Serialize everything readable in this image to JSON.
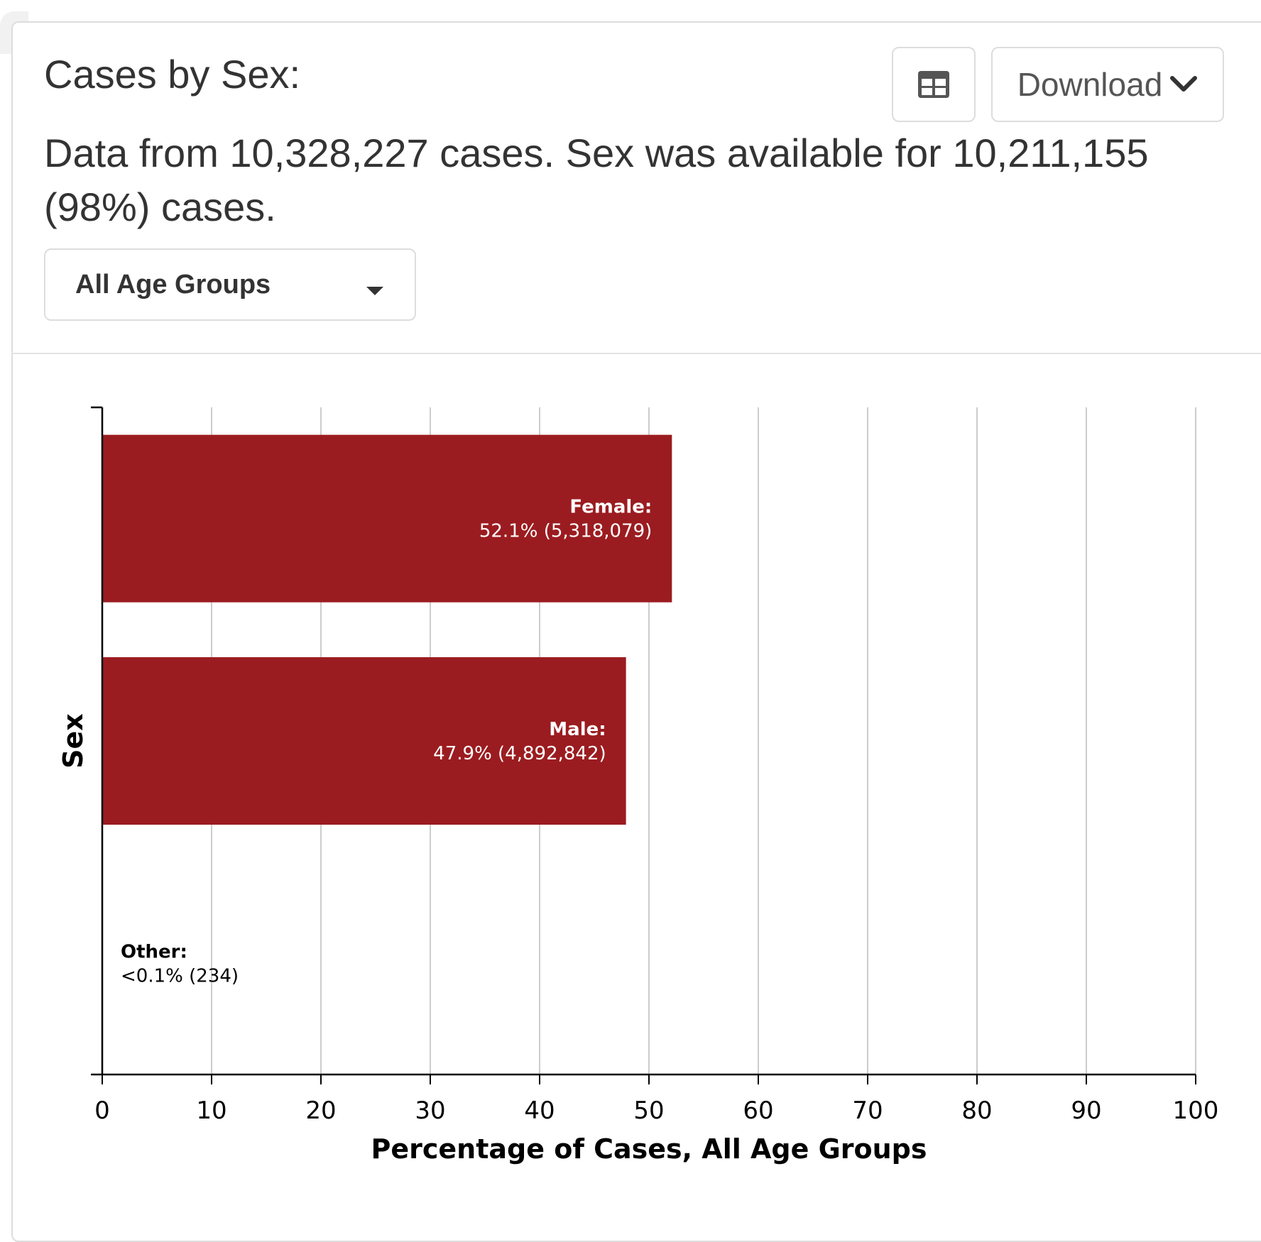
{
  "card": {
    "title": "Cases by Sex:",
    "summary": "Data from 10,328,227 cases. Sex was available for 10,211,155 (98%) cases."
  },
  "toolbar": {
    "table_icon": "table-icon",
    "download_label": "Download",
    "download_icon": "chevron-down-icon"
  },
  "filter": {
    "selected": "All Age Groups"
  },
  "colors": {
    "bar": "#9b1c20",
    "grid": "#cccccc",
    "axis": "#000000"
  },
  "chart_data": {
    "type": "bar",
    "orientation": "horizontal",
    "categories": [
      "Female",
      "Male",
      "Other"
    ],
    "values": [
      52.1,
      47.9,
      0.002
    ],
    "labels": [
      {
        "name": "Female:",
        "value": "52.1% (5,318,079)"
      },
      {
        "name": "Male:",
        "value": "47.9% (4,892,842)"
      },
      {
        "name": "Other:",
        "value": "<0.1% (234)"
      }
    ],
    "xlabel": "Percentage of Cases, All Age Groups",
    "ylabel": "Sex",
    "xlim": [
      0,
      100
    ],
    "xticks": [
      0,
      10,
      20,
      30,
      40,
      50,
      60,
      70,
      80,
      90,
      100
    ],
    "grid": true
  }
}
